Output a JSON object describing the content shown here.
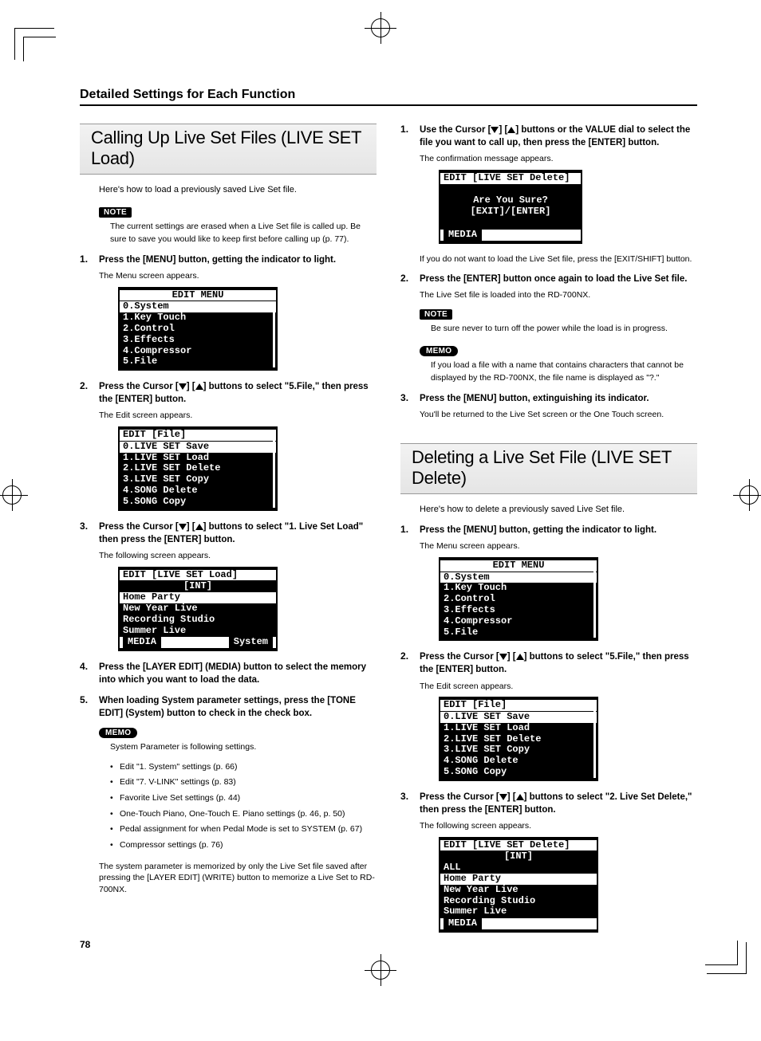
{
  "page": {
    "header": "Detailed Settings for Each Function",
    "number": "78"
  },
  "col1": {
    "section1": {
      "title": "Calling Up Live Set Files (LIVE SET Load)",
      "intro": "Here's how to load a previously saved Live Set file.",
      "note_label": "NOTE",
      "note_text": "The current settings are erased when a Live Set file is called up. Be sure to save you would like to keep first before calling up (p. 77).",
      "steps": {
        "s1_main": "Press the [MENU] button, getting the indicator to light.",
        "s1_sub": "The Menu screen appears.",
        "lcd1": {
          "title": "EDIT MENU",
          "rows": [
            "0.System",
            "1.Key Touch",
            "2.Control",
            "3.Effects",
            "4.Compressor",
            "5.File"
          ],
          "highlight": 0
        },
        "s2_pre": "Press the Cursor [",
        "s2_mid": "] [",
        "s2_post": "] buttons to select \"5.File,\" then press the [ENTER] button.",
        "s2_sub": "The Edit screen appears.",
        "lcd2": {
          "title": "EDIT [File]",
          "rows": [
            "0.LIVE SET Save",
            "1.LIVE SET Load",
            "2.LIVE SET Delete",
            "3.LIVE SET Copy",
            "4.SONG Delete",
            "5.SONG Copy"
          ],
          "highlight": 0
        },
        "s3_pre": "Press the Cursor [",
        "s3_mid": "] [",
        "s3_post": "] buttons to select \"1. Live Set Load\" then press the [ENTER] button.",
        "s3_sub": "The following screen appears.",
        "lcd3": {
          "title": "EDIT [LIVE SET Load]",
          "subtitle": "[INT]",
          "rows": [
            "Home Party",
            "New Year Live",
            "Recording Studio",
            "Summer Live"
          ],
          "highlight": 0,
          "bottom_left": "MEDIA",
          "bottom_right": "System"
        },
        "s4_main": "Press the [LAYER EDIT] (MEDIA) button to select the memory into which you want to load the data.",
        "s5_main": "When loading System parameter settings, press the [TONE EDIT] (System) button to check in the check box.",
        "memo_label": "MEMO",
        "memo_text": "System Parameter is following settings.",
        "bullets": [
          "Edit \"1. System\" settings (p. 66)",
          "Edit \"7. V-LINK\" settings (p. 83)",
          "Favorite Live Set settings (p. 44)",
          "One-Touch Piano, One-Touch E. Piano settings (p. 46, p. 50)",
          "Pedal assignment for when Pedal Mode is set to SYSTEM (p. 67)",
          "Compressor settings (p. 76)"
        ],
        "after_bullets": "The system parameter is memorized by only the Live Set file saved after pressing the [LAYER EDIT] (WRITE) button to memorize a Live Set to RD-700NX."
      }
    }
  },
  "col2": {
    "cont": {
      "s6_pre": "Use the Cursor [",
      "s6_mid": "] [",
      "s6_post": "] buttons or the VALUE dial to select the file you want to call up, then press the [ENTER] button.",
      "s6_sub": "The confirmation message appears.",
      "lcd_confirm": {
        "title": "EDIT [LIVE SET Delete]",
        "line1": "Are You Sure?",
        "line2": "[EXIT]/[ENTER]",
        "bottom": "MEDIA"
      },
      "s6_after": "If you do not want to load the Live Set file, press the [EXIT/SHIFT] button.",
      "s7_main": "Press the [ENTER] button once again to load the Live Set file.",
      "s7_sub": "The Live Set file is loaded into the RD-700NX.",
      "note_label": "NOTE",
      "note_text": "Be sure never to turn off the power while the load is in progress.",
      "memo_label": "MEMO",
      "memo_text": "If you load a file with a name that contains characters that cannot be displayed by the RD-700NX, the file name is displayed as \"?.\"",
      "s8_main": "Press the [MENU] button, extinguishing its indicator.",
      "s8_sub": "You'll be returned to the Live Set screen or the One Touch screen."
    },
    "section2": {
      "title": "Deleting a Live Set File (LIVE SET Delete)",
      "intro": "Here's how to delete a previously saved Live Set file.",
      "s1_main": "Press the [MENU] button, getting the indicator to light.",
      "s1_sub": "The Menu screen appears.",
      "lcd1": {
        "title": "EDIT MENU",
        "rows": [
          "0.System",
          "1.Key Touch",
          "2.Control",
          "3.Effects",
          "4.Compressor",
          "5.File"
        ],
        "highlight": 0
      },
      "s2_pre": "Press the Cursor [",
      "s2_mid": "] [",
      "s2_post": "] buttons to select \"5.File,\" then press the [ENTER] button.",
      "s2_sub": "The Edit screen appears.",
      "lcd2": {
        "title": "EDIT [File]",
        "rows": [
          "0.LIVE SET Save",
          "1.LIVE SET Load",
          "2.LIVE SET Delete",
          "3.LIVE SET Copy",
          "4.SONG Delete",
          "5.SONG Copy"
        ],
        "highlight": 0
      },
      "s3_pre": "Press the Cursor [",
      "s3_mid": "] [",
      "s3_post": "] buttons to select \"2. Live Set Delete,\" then press the [ENTER] button.",
      "s3_sub": "The following screen appears.",
      "lcd3": {
        "title": "EDIT [LIVE SET Delete]",
        "subtitle": "[INT]",
        "rows": [
          "ALL",
          "Home Party",
          "New Year Live",
          "Recording Studio",
          "Summer Live"
        ],
        "highlight": 1,
        "bottom_left": "MEDIA"
      }
    }
  }
}
